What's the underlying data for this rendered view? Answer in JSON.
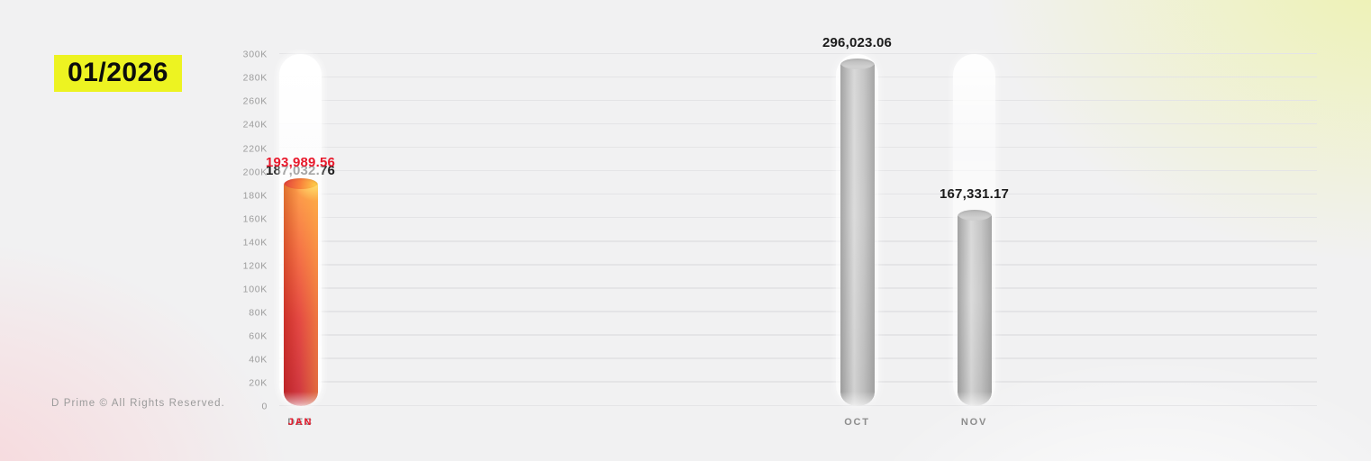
{
  "header": {
    "period": "01/2026",
    "highlight_background": "#edf321"
  },
  "footer": {
    "copyright": "D Prime © All Rights Reserved."
  },
  "chart_data": {
    "type": "bar",
    "title": "",
    "xlabel": "",
    "ylabel": "",
    "categories": [
      "OCT",
      "NOV",
      "DEC",
      "JAN"
    ],
    "values": [
      296023.06,
      167331.17,
      187032.76,
      193989.56
    ],
    "value_labels": [
      "296,023.06",
      "167,331.17",
      "187,032.76",
      "193,989.56"
    ],
    "highlight_index": 3,
    "highlight_color": "#e8192c",
    "bar_color": "#c6c6c6",
    "ylim": [
      0,
      300000
    ],
    "ytick_step": 20000,
    "ytick_labels": [
      "0",
      "20K",
      "40K",
      "60K",
      "80K",
      "100K",
      "120K",
      "140K",
      "160K",
      "180K",
      "200K",
      "220K",
      "240K",
      "260K",
      "280K",
      "300K"
    ],
    "grid": true,
    "legend": false
  }
}
